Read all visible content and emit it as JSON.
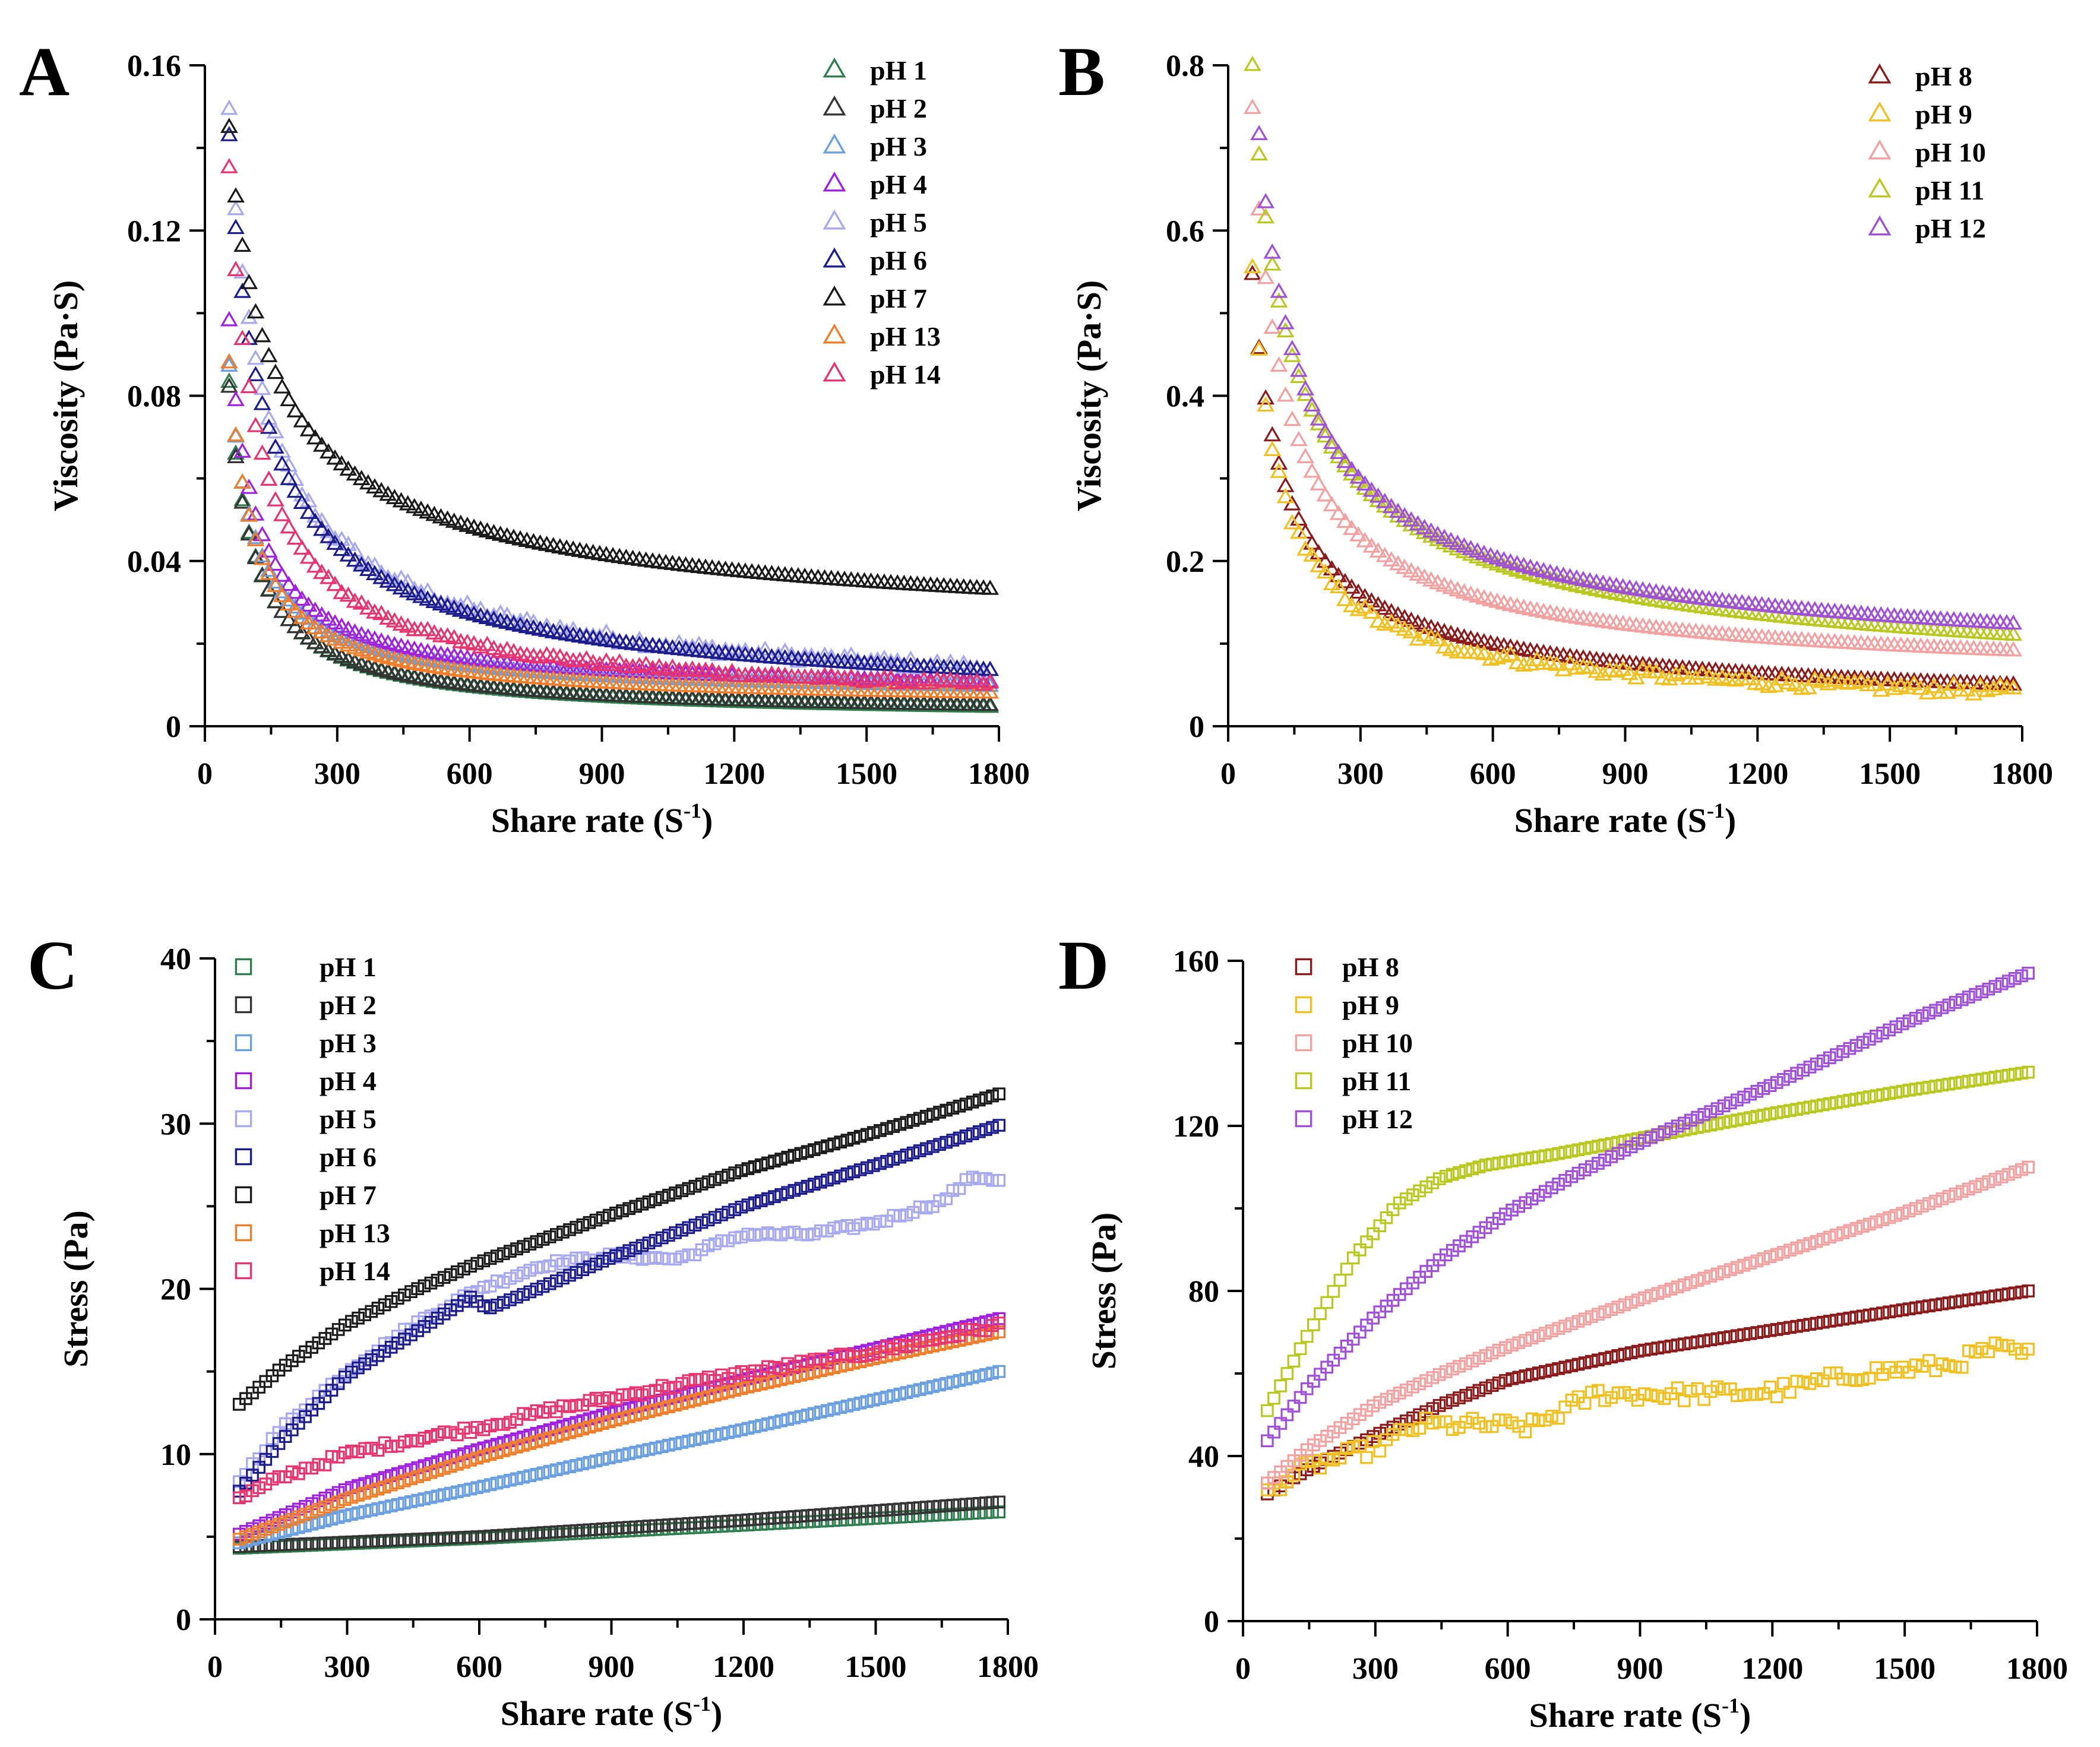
{
  "chart_data": [
    {
      "panel": "A",
      "type": "scatter",
      "marker": "triangle",
      "xlabel": "Share rate (S",
      "xlabel_sup": "-1",
      "xlabel_end": ")",
      "ylabel": "Viscosity (Pa·S)",
      "xlim": [
        0,
        1800
      ],
      "ylim": [
        0,
        0.16
      ],
      "xticks": [
        "0",
        "300",
        "600",
        "900",
        "1200",
        "1500",
        "1800"
      ],
      "yticks": [
        "0",
        "0.04",
        "0.08",
        "0.12",
        "0.16"
      ],
      "legend_position": "top-right",
      "series": [
        {
          "name": "pH 1",
          "color": "#2e7d4f",
          "model": "power",
          "a": 0.0812,
          "p": -1.0,
          "c": 0.0021,
          "noise": 0
        },
        {
          "name": "pH 2",
          "color": "#333333",
          "model": "power",
          "a": 0.0795,
          "p": -1.0,
          "c": 0.0026,
          "noise": 0
        },
        {
          "name": "pH 3",
          "color": "#6a9fe0",
          "model": "power",
          "a": 0.08,
          "p": -1.0,
          "c": 0.0072,
          "noise": 0
        },
        {
          "name": "pH 4",
          "color": "#a020e0",
          "model": "power",
          "a": 0.0902,
          "p": -1.0,
          "c": 0.008,
          "noise": 0
        },
        {
          "name": "pH 5",
          "color": "#a8a8f0",
          "model": "power",
          "a": 0.147,
          "p": -0.72,
          "c": 0.002,
          "noise": 0.0012
        },
        {
          "name": "pH 6",
          "color": "#1c1c8c",
          "model": "power",
          "a": 0.141,
          "p": -0.72,
          "c": 0.002,
          "noise": 0
        },
        {
          "name": "pH 7",
          "color": "#1a1a1a",
          "model": "power",
          "a": 0.129,
          "p": -0.58,
          "c": 0.016,
          "noise": 0
        },
        {
          "name": "pH 13",
          "color": "#ef7d2a",
          "model": "power",
          "a": 0.0825,
          "p": -1.0,
          "c": 0.0055,
          "noise": 0
        },
        {
          "name": "pH 14",
          "color": "#e8346e",
          "model": "power",
          "a": 0.131,
          "p": -0.88,
          "c": 0.004,
          "noise": 0.0006
        }
      ]
    },
    {
      "panel": "B",
      "type": "scatter",
      "marker": "triangle",
      "xlabel": "Share rate (S",
      "xlabel_sup": "-1",
      "xlabel_end": ")",
      "ylabel": "Viscosity (Pa·S)",
      "xlim": [
        0,
        1800
      ],
      "ylim": [
        0,
        0.8
      ],
      "xticks": [
        "0",
        "300",
        "600",
        "900",
        "1200",
        "1500",
        "1800"
      ],
      "yticks": [
        "0",
        "0.2",
        "0.4",
        "0.6",
        "0.8"
      ],
      "legend_position": "top-right",
      "series": [
        {
          "name": "pH 8",
          "color": "#8b1a1a",
          "model": "power",
          "a": 0.535,
          "p": -0.76,
          "c": 0.012,
          "noise": 0
        },
        {
          "name": "pH 9",
          "color": "#f0c020",
          "model": "power",
          "a": 0.54,
          "p": -0.85,
          "c": 0.014,
          "noise": 0.006
        },
        {
          "name": "pH 10",
          "color": "#f2a0a0",
          "model": "power",
          "a": 0.7,
          "p": -0.8,
          "c": 0.048,
          "noise": 0
        },
        {
          "name": "pH 11",
          "color": "#b8c81e",
          "model": "power",
          "a": 0.78,
          "p": -0.62,
          "c": 0.02,
          "noise": 0
        },
        {
          "name": "pH 12",
          "color": "#a050d8",
          "model": "power",
          "a": 0.785,
          "p": -0.68,
          "c": 0.05,
          "noise": 0
        }
      ]
    },
    {
      "panel": "C",
      "type": "scatter",
      "marker": "square",
      "xlabel": "Share rate (S",
      "xlabel_sup": "-1",
      "xlabel_end": ")",
      "ylabel": "Stress (Pa)",
      "xlim": [
        0,
        1800
      ],
      "ylim": [
        0,
        40
      ],
      "xticks": [
        "0",
        "300",
        "600",
        "900",
        "1200",
        "1500",
        "1800"
      ],
      "yticks": [
        "0",
        "10",
        "20",
        "30",
        "40"
      ],
      "legend_position": "top-left",
      "series": [
        {
          "name": "pH 1",
          "color": "#2e7d4f",
          "model": "pts",
          "pts": [
            [
              50,
              4.3
            ],
            [
              600,
              4.9
            ],
            [
              1200,
              5.7
            ],
            [
              1780,
              6.5
            ]
          ],
          "noise": 0
        },
        {
          "name": "pH 2",
          "color": "#333333",
          "model": "pts",
          "pts": [
            [
              50,
              4.4
            ],
            [
              600,
              5.0
            ],
            [
              1200,
              6.0
            ],
            [
              1780,
              7.1
            ]
          ],
          "noise": 0
        },
        {
          "name": "pH 3",
          "color": "#6a9fe0",
          "model": "pts",
          "pts": [
            [
              50,
              4.6
            ],
            [
              300,
              6.3
            ],
            [
              600,
              8.0
            ],
            [
              900,
              9.8
            ],
            [
              1200,
              11.5
            ],
            [
              1500,
              13.3
            ],
            [
              1780,
              15.0
            ]
          ],
          "noise": 0
        },
        {
          "name": "pH 4",
          "color": "#a020e0",
          "model": "pts",
          "pts": [
            [
              50,
              5.1
            ],
            [
              300,
              7.9
            ],
            [
              600,
              10.3
            ],
            [
              900,
              12.5
            ],
            [
              1200,
              14.5
            ],
            [
              1500,
              16.4
            ],
            [
              1780,
              18.2
            ]
          ],
          "noise": 0
        },
        {
          "name": "pH 5",
          "color": "#a8a8f0",
          "model": "pts",
          "pts": [
            [
              50,
              8.2
            ],
            [
              150,
              11.5
            ],
            [
              300,
              15.0
            ],
            [
              450,
              17.8
            ],
            [
              600,
              20.0
            ],
            [
              750,
              21.5
            ],
            [
              900,
              22.0
            ],
            [
              1050,
              21.8
            ],
            [
              1200,
              23.3
            ],
            [
              1350,
              23.3
            ],
            [
              1500,
              24.0
            ],
            [
              1650,
              25.3
            ],
            [
              1720,
              26.8
            ],
            [
              1780,
              26.6
            ]
          ],
          "noise": 0.15
        },
        {
          "name": "pH 6",
          "color": "#1c1c8c",
          "model": "pts",
          "pts": [
            [
              50,
              7.6
            ],
            [
              150,
              10.8
            ],
            [
              300,
              14.8
            ],
            [
              450,
              17.3
            ],
            [
              580,
              19.5
            ],
            [
              620,
              18.8
            ],
            [
              750,
              20.2
            ],
            [
              900,
              21.9
            ],
            [
              1200,
              25.0
            ],
            [
              1500,
              27.5
            ],
            [
              1780,
              29.9
            ]
          ],
          "noise": 0
        },
        {
          "name": "pH 7",
          "color": "#1a1a1a",
          "model": "pts",
          "pts": [
            [
              50,
              12.9
            ],
            [
              150,
              15.2
            ],
            [
              300,
              17.9
            ],
            [
              450,
              19.9
            ],
            [
              600,
              21.6
            ],
            [
              900,
              24.5
            ],
            [
              1200,
              27.2
            ],
            [
              1500,
              29.5
            ],
            [
              1780,
              31.8
            ]
          ],
          "noise": 0
        },
        {
          "name": "pH 13",
          "color": "#ef7d2a",
          "model": "pts",
          "pts": [
            [
              50,
              4.8
            ],
            [
              300,
              7.3
            ],
            [
              600,
              9.8
            ],
            [
              900,
              12.0
            ],
            [
              1200,
              14.0
            ],
            [
              1500,
              15.8
            ],
            [
              1780,
              17.4
            ]
          ],
          "noise": 0
        },
        {
          "name": "pH 14",
          "color": "#e8346e",
          "model": "pts",
          "pts": [
            [
              50,
              7.2
            ],
            [
              150,
              8.6
            ],
            [
              300,
              10.0
            ],
            [
              450,
              10.9
            ],
            [
              600,
              11.6
            ],
            [
              750,
              12.6
            ],
            [
              900,
              13.4
            ],
            [
              1050,
              14.2
            ],
            [
              1200,
              14.9
            ],
            [
              1500,
              16.2
            ],
            [
              1780,
              17.8
            ]
          ],
          "noise": 0.2
        }
      ]
    },
    {
      "panel": "D",
      "type": "scatter",
      "marker": "square",
      "xlabel": "Share rate (S",
      "xlabel_sup": "-1",
      "xlabel_end": ")",
      "ylabel": "Stress (Pa)",
      "xlim": [
        0,
        1800
      ],
      "ylim": [
        0,
        160
      ],
      "xticks": [
        "0",
        "300",
        "600",
        "900",
        "1200",
        "1500",
        "1800"
      ],
      "yticks": [
        "0",
        "40",
        "80",
        "120",
        "160"
      ],
      "legend_position": "top-left",
      "series": [
        {
          "name": "pH 8",
          "color": "#8b1a1a",
          "model": "pts",
          "pts": [
            [
              50,
              30.5
            ],
            [
              150,
              37.0
            ],
            [
              300,
              45.0
            ],
            [
              450,
              52.5
            ],
            [
              600,
              58.5
            ],
            [
              900,
              65.5
            ],
            [
              1200,
              70.5
            ],
            [
              1500,
              75.5
            ],
            [
              1780,
              80.0
            ]
          ],
          "noise": 0
        },
        {
          "name": "pH 9",
          "color": "#f0c020",
          "model": "pts",
          "pts": [
            [
              50,
              31.5
            ],
            [
              150,
              37.5
            ],
            [
              300,
              42.0
            ],
            [
              400,
              47.5
            ],
            [
              550,
              47.5
            ],
            [
              650,
              47.0
            ],
            [
              800,
              55.0
            ],
            [
              1000,
              55.0
            ],
            [
              1200,
              55.5
            ],
            [
              1400,
              60.0
            ],
            [
              1600,
              62.0
            ],
            [
              1700,
              66.0
            ],
            [
              1780,
              64.5
            ]
          ],
          "noise": 1.8
        },
        {
          "name": "pH 10",
          "color": "#f2a0a0",
          "model": "pts",
          "pts": [
            [
              50,
              33.0
            ],
            [
              150,
              42.0
            ],
            [
              300,
              52.5
            ],
            [
              450,
              60.0
            ],
            [
              600,
              66.5
            ],
            [
              900,
              78.0
            ],
            [
              1200,
              88.5
            ],
            [
              1500,
              99.0
            ],
            [
              1780,
              110.0
            ]
          ],
          "noise": 0
        },
        {
          "name": "pH 11",
          "color": "#b8c81e",
          "model": "pts",
          "pts": [
            [
              50,
              50.0
            ],
            [
              150,
              70.0
            ],
            [
              250,
              88.0
            ],
            [
              350,
              101.0
            ],
            [
              450,
              107.5
            ],
            [
              550,
              110.5
            ],
            [
              700,
              113.0
            ],
            [
              900,
              117.0
            ],
            [
              1200,
              123.0
            ],
            [
              1500,
              128.5
            ],
            [
              1780,
              133.0
            ]
          ],
          "noise": 0
        },
        {
          "name": "pH 12",
          "color": "#a050d8",
          "model": "pts",
          "pts": [
            [
              50,
              43.0
            ],
            [
              150,
              57.0
            ],
            [
              300,
              74.0
            ],
            [
              450,
              88.0
            ],
            [
              600,
              99.0
            ],
            [
              750,
              108.0
            ],
            [
              900,
              116.0
            ],
            [
              1200,
              130.0
            ],
            [
              1500,
              145.0
            ],
            [
              1780,
              157.0
            ]
          ],
          "noise": 0
        }
      ]
    }
  ]
}
